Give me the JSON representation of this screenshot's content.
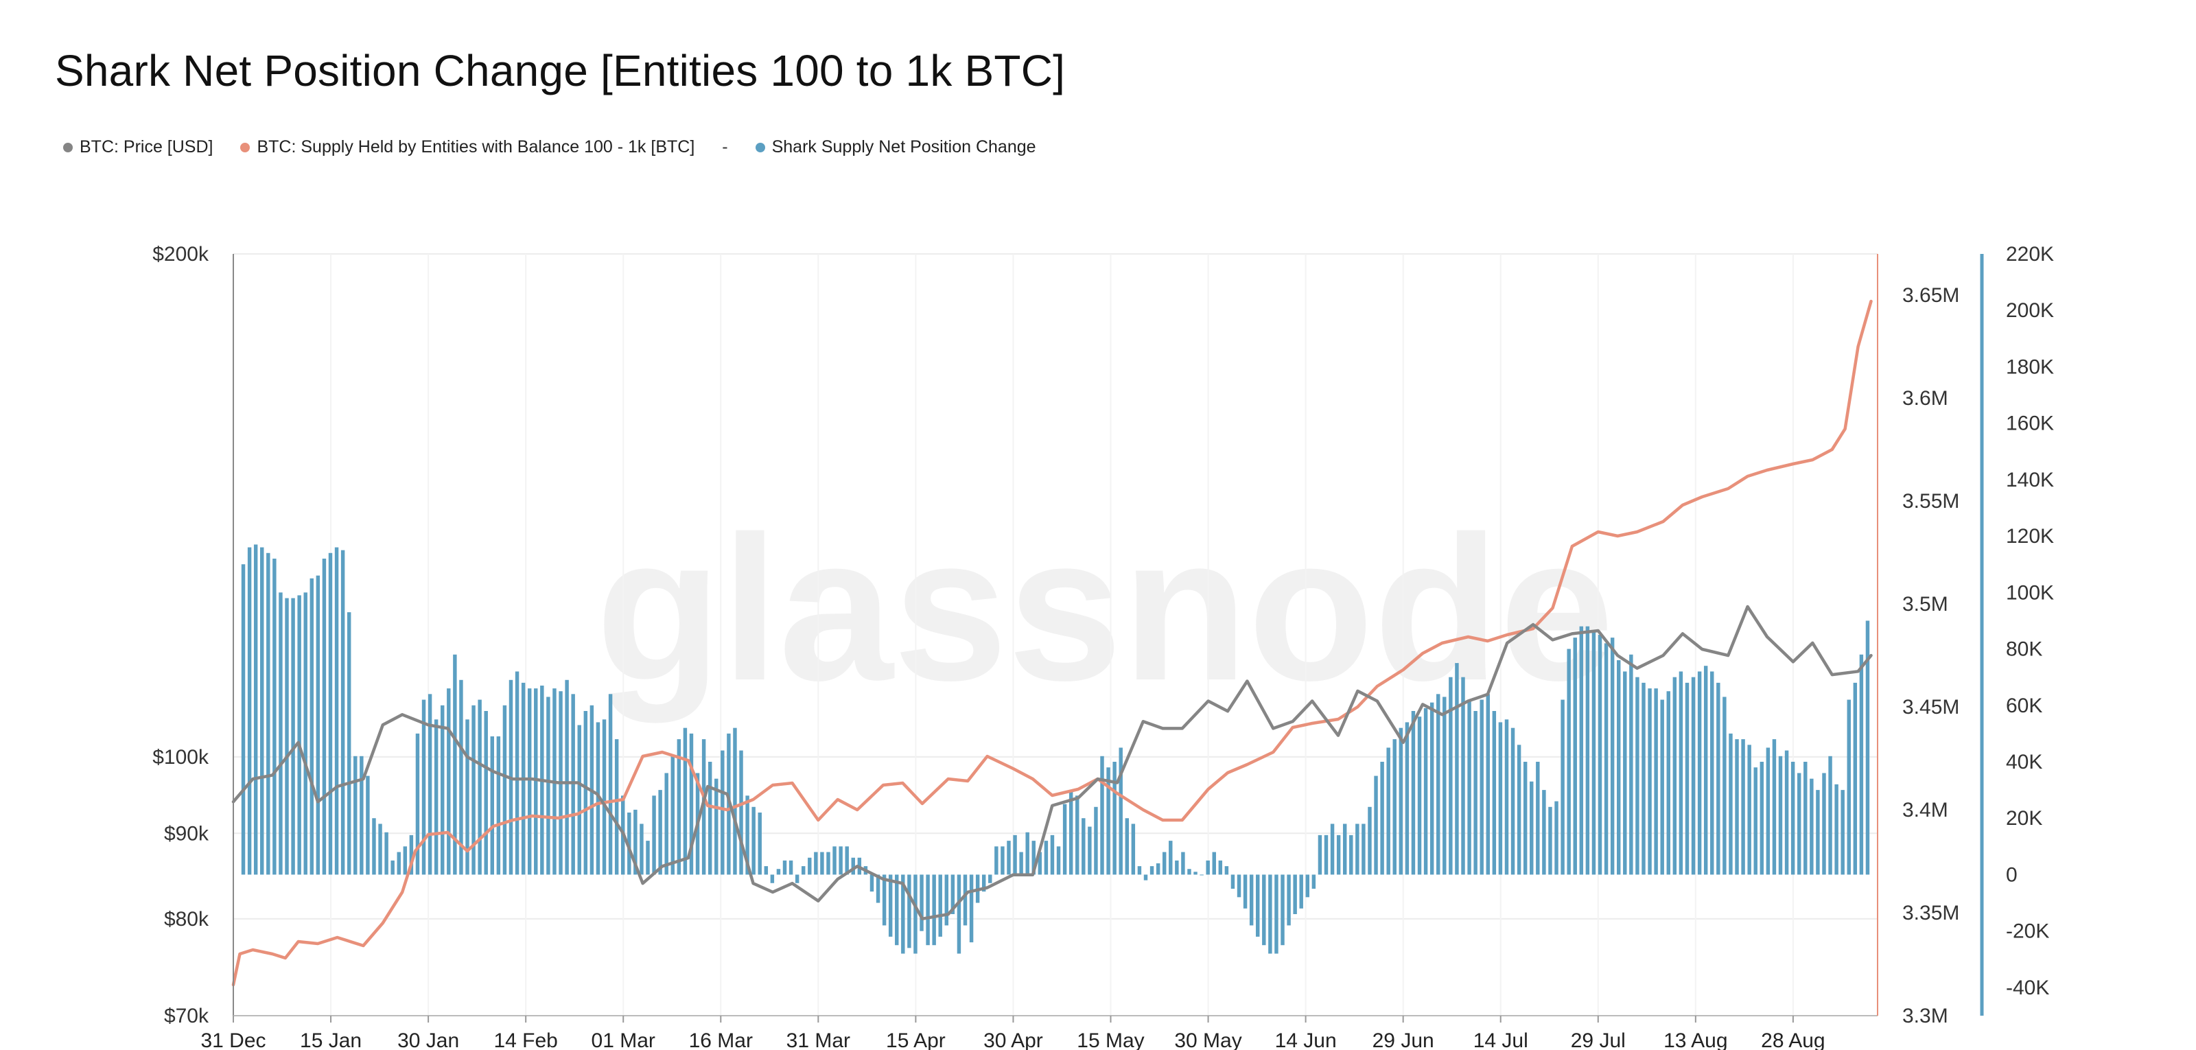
{
  "title": "Shark Net Position Change [Entities 100 to 1k BTC]",
  "legend": [
    {
      "label": "BTC: Price [USD]",
      "color": "#858585"
    },
    {
      "label": "BTC: Supply Held by Entities with Balance 100 - 1k [BTC]",
      "color": "#e8907a"
    },
    {
      "separator": "-"
    },
    {
      "label": "Shark Supply Net Position Change",
      "color": "#5b9fc2"
    }
  ],
  "watermark": "glassnode",
  "chart_data": {
    "type": "bar+line",
    "title": "Shark Net Position Change [Entities 100 to 1k BTC]",
    "x_tick_labels": [
      "31 Dec",
      "15 Jan",
      "30 Jan",
      "14 Feb",
      "01 Mar",
      "16 Mar",
      "31 Mar",
      "15 Apr",
      "30 Apr",
      "15 May",
      "30 May",
      "14 Jun",
      "29 Jun",
      "14 Jul",
      "29 Jul",
      "13 Aug",
      "28 Aug"
    ],
    "x_range_days": [
      0,
      253
    ],
    "price_axis": {
      "scale": "log",
      "range": [
        70000,
        200000
      ],
      "tick_values": [
        70000,
        80000,
        90000,
        100000,
        200000
      ],
      "tick_labels": [
        "$70k",
        "$80k",
        "$90k",
        "$100k",
        "$200k"
      ]
    },
    "supply_axis": {
      "range": [
        3300000,
        3670000
      ],
      "tick_values": [
        3300000,
        3350000,
        3400000,
        3450000,
        3500000,
        3550000,
        3600000,
        3650000
      ],
      "tick_labels": [
        "3.3M",
        "3.35M",
        "3.4M",
        "3.45M",
        "3.5M",
        "3.55M",
        "3.6M",
        "3.65M"
      ]
    },
    "net_change_axis": {
      "range": [
        -50000,
        220000
      ],
      "tick_values": [
        -40000,
        -20000,
        0,
        20000,
        40000,
        60000,
        80000,
        100000,
        120000,
        140000,
        160000,
        180000,
        200000,
        220000
      ],
      "tick_labels": [
        "-40K",
        "-20K",
        "0",
        "20K",
        "40K",
        "60K",
        "80K",
        "100K",
        "120K",
        "140K",
        "160K",
        "180K",
        "200K",
        "220K"
      ]
    },
    "series": [
      {
        "name": "BTC: Price [USD]",
        "kind": "line",
        "axis": "price",
        "x": [
          0,
          3,
          6,
          10,
          13,
          16,
          20,
          23,
          26,
          30,
          33,
          36,
          40,
          43,
          46,
          50,
          53,
          56,
          60,
          63,
          66,
          70,
          73,
          76,
          80,
          83,
          86,
          90,
          93,
          96,
          100,
          103,
          106,
          110,
          113,
          116,
          120,
          123,
          126,
          130,
          133,
          136,
          140,
          143,
          146,
          150,
          153,
          156,
          160,
          163,
          166,
          170,
          173,
          176,
          180,
          183,
          186,
          190,
          193,
          196,
          200,
          203,
          206,
          210,
          213,
          216,
          220,
          223,
          226,
          230,
          233,
          236,
          240,
          243,
          246,
          250,
          252
        ],
        "values": [
          94000,
          97000,
          97500,
          102000,
          94000,
          96000,
          97000,
          104500,
          106000,
          104500,
          104000,
          100000,
          98000,
          97000,
          97000,
          96500,
          96500,
          95000,
          90000,
          84000,
          86000,
          87000,
          96000,
          95000,
          84000,
          83000,
          84000,
          82000,
          84500,
          86000,
          84500,
          84000,
          80000,
          80500,
          83000,
          83500,
          85000,
          85000,
          93500,
          94500,
          97000,
          96500,
          105000,
          104000,
          104000,
          108000,
          106500,
          111000,
          104000,
          105000,
          108000,
          103000,
          109500,
          108000,
          102000,
          107500,
          106000,
          108000,
          109000,
          117000,
          120000,
          117500,
          118500,
          119000,
          115000,
          113000,
          115000,
          118500,
          116000,
          115000,
          123000,
          118000,
          114000,
          117000,
          112000,
          112500,
          115000
        ]
      },
      {
        "name": "BTC: Supply Held by Entities with Balance 100 - 1k [BTC]",
        "kind": "line",
        "axis": "supply",
        "x": [
          0,
          1,
          3,
          6,
          8,
          10,
          13,
          16,
          20,
          23,
          26,
          28,
          30,
          33,
          36,
          40,
          43,
          46,
          50,
          53,
          56,
          60,
          63,
          66,
          70,
          73,
          76,
          80,
          83,
          86,
          90,
          93,
          96,
          100,
          103,
          106,
          110,
          113,
          116,
          120,
          123,
          126,
          130,
          133,
          136,
          140,
          143,
          146,
          150,
          153,
          156,
          160,
          163,
          166,
          170,
          173,
          176,
          180,
          183,
          186,
          190,
          193,
          196,
          200,
          203,
          206,
          210,
          213,
          216,
          220,
          223,
          226,
          230,
          233,
          236,
          240,
          243,
          246,
          248,
          250,
          252
        ],
        "values": [
          3315000,
          3330000,
          3332000,
          3330000,
          3328000,
          3336000,
          3335000,
          3338000,
          3334000,
          3345000,
          3360000,
          3380000,
          3388000,
          3389000,
          3380000,
          3392000,
          3395000,
          3397000,
          3396000,
          3398000,
          3403000,
          3405000,
          3426000,
          3428000,
          3424000,
          3402000,
          3400000,
          3405000,
          3412000,
          3413000,
          3395000,
          3405000,
          3400000,
          3412000,
          3413000,
          3403000,
          3415000,
          3414000,
          3426000,
          3420000,
          3415000,
          3407000,
          3410000,
          3415000,
          3408000,
          3400000,
          3395000,
          3395000,
          3410000,
          3418000,
          3422000,
          3428000,
          3440000,
          3442000,
          3444000,
          3450000,
          3460000,
          3468000,
          3476000,
          3481000,
          3484000,
          3482000,
          3485000,
          3488000,
          3498000,
          3528000,
          3535000,
          3533000,
          3535000,
          3540000,
          3548000,
          3552000,
          3556000,
          3562000,
          3565000,
          3568000,
          3570000,
          3575000,
          3585000,
          3625000,
          3647000
        ]
      },
      {
        "name": "Shark Supply Net Position Change",
        "kind": "bar",
        "axis": "net_change",
        "values": [
          110000,
          116000,
          117000,
          116000,
          114000,
          112000,
          100000,
          98000,
          98000,
          99000,
          100000,
          105000,
          106000,
          112000,
          114000,
          116000,
          115000,
          93000,
          42000,
          42000,
          35000,
          20000,
          18000,
          15000,
          5000,
          8000,
          10000,
          14000,
          50000,
          62000,
          64000,
          55000,
          60000,
          66000,
          78000,
          69000,
          55000,
          60000,
          62000,
          58000,
          49000,
          49000,
          60000,
          69000,
          72000,
          68000,
          66000,
          66000,
          67000,
          63000,
          66000,
          65000,
          69000,
          64000,
          53000,
          58000,
          60000,
          54000,
          55000,
          64000,
          48000,
          28000,
          22000,
          23000,
          18000,
          12000,
          28000,
          30000,
          36000,
          42000,
          48000,
          52000,
          50000,
          36000,
          48000,
          40000,
          34000,
          44000,
          50000,
          52000,
          44000,
          28000,
          24000,
          22000,
          3000,
          -3000,
          2000,
          5000,
          5000,
          -3000,
          3000,
          6000,
          8000,
          8000,
          8000,
          10000,
          10000,
          10000,
          6000,
          6000,
          3000,
          -6000,
          -10000,
          -18000,
          -22000,
          -25000,
          -28000,
          -26000,
          -28000,
          -20000,
          -25000,
          -25000,
          -22000,
          -18000,
          -14000,
          -28000,
          -18000,
          -24000,
          -10000,
          -6000,
          -3000,
          10000,
          10000,
          12000,
          14000,
          8000,
          15000,
          12000,
          8000,
          12000,
          14000,
          10000,
          25000,
          30000,
          28000,
          20000,
          17000,
          24000,
          42000,
          38000,
          40000,
          45000,
          20000,
          18000,
          3000,
          -2000,
          3000,
          4000,
          8000,
          12000,
          5000,
          8000,
          2000,
          1000,
          0,
          5000,
          8000,
          5000,
          3000,
          -5000,
          -8000,
          -12000,
          -18000,
          -22000,
          -25000,
          -28000,
          -28000,
          -25000,
          -18000,
          -14000,
          -12000,
          -8000,
          -5000,
          14000,
          14000,
          18000,
          14000,
          18000,
          14000,
          18000,
          18000,
          24000,
          35000,
          40000,
          45000,
          48000,
          52000,
          54000,
          58000,
          56000,
          59000,
          61000,
          64000,
          63000,
          70000,
          75000,
          70000,
          62000,
          58000,
          62000,
          64000,
          58000,
          54000,
          55000,
          52000,
          46000,
          40000,
          33000,
          40000,
          30000,
          24000,
          26000,
          62000,
          80000,
          84000,
          88000,
          88000,
          86000,
          85000,
          82000,
          84000,
          76000,
          72000,
          78000,
          70000,
          68000,
          66000,
          66000,
          62000,
          65000,
          70000,
          72000,
          68000,
          70000,
          72000,
          74000,
          72000,
          68000,
          63000,
          50000,
          48000,
          48000,
          46000,
          38000,
          40000,
          45000,
          48000,
          42000,
          44000,
          40000,
          36000,
          40000,
          34000,
          30000,
          36000,
          42000,
          32000,
          30000,
          62000,
          68000,
          78000,
          90000
        ]
      }
    ]
  }
}
